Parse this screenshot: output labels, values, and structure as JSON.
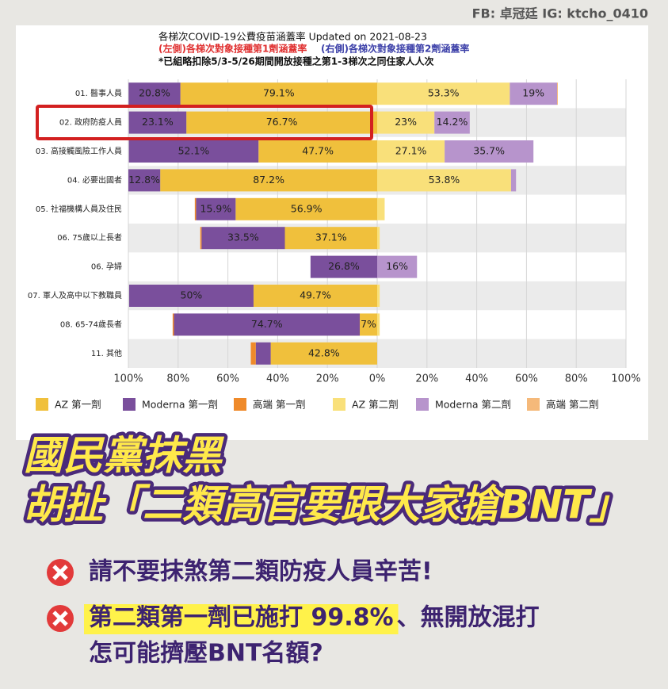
{
  "credit": "FB: 卓冠廷   IG: ktcho_0410",
  "chart_data": {
    "type": "diverging_bar",
    "title": "各梯次COVID-19公費疫苗涵蓋率 Updated on 2021-08-23",
    "subtitle_left": "(左側)各梯次對象接種第1劑涵蓋率",
    "subtitle_right": "(右側)各梯次對象接種第2劑涵蓋率",
    "note": "*已組略扣除5/3-5/26期間開放接種之第1-3梯次之同住家人人次",
    "categories": [
      "01. 醫事人員",
      "02. 政府防疫人員",
      "03. 高接觸風險工作人員",
      "04. 必要出國者",
      "05. 社福機構人員及住民",
      "06. 75歲以上長者",
      "06. 孕婦",
      "07. 軍人及高中以下教職員",
      "08. 65-74歲長者",
      "11. 其他"
    ],
    "xlim": [
      -100,
      100
    ],
    "xticks": [
      {
        "value": -100,
        "label": "100%"
      },
      {
        "value": -80,
        "label": "80%"
      },
      {
        "value": -60,
        "label": "60%"
      },
      {
        "value": -40,
        "label": "40%"
      },
      {
        "value": -20,
        "label": "20%"
      },
      {
        "value": 0,
        "label": "0%"
      },
      {
        "value": 20,
        "label": "20%"
      },
      {
        "value": 40,
        "label": "40%"
      },
      {
        "value": 60,
        "label": "60%"
      },
      {
        "value": 80,
        "label": "80%"
      },
      {
        "value": 100,
        "label": "100%"
      }
    ],
    "grid": true,
    "series": [
      {
        "name": "AZ 第一劑",
        "side": "left",
        "color": "#f0c03c",
        "values": [
          79.1,
          76.7,
          47.7,
          87.2,
          56.9,
          37.1,
          0,
          49.7,
          7,
          42.8
        ],
        "value_labels": [
          "79.1%",
          "76.7%",
          "47.7%",
          "87.2%",
          "56.9%",
          "37.1%",
          null,
          "49.7%",
          "7%",
          "42.8%"
        ]
      },
      {
        "name": "Moderna 第一劑",
        "side": "left",
        "color": "#7a4f9c",
        "values": [
          20.8,
          23.1,
          52.1,
          12.8,
          15.9,
          33.5,
          26.8,
          50,
          74.7,
          6
        ],
        "value_labels": [
          "20.8%",
          "23.1%",
          "52.1%",
          "12.8%",
          "15.9%",
          "33.5%",
          "26.8%",
          "50%",
          "74.7%",
          null
        ]
      },
      {
        "name": "高端 第一劑",
        "side": "left",
        "color": "#ef8a2a",
        "values": [
          0,
          0,
          0,
          0,
          0.5,
          0.5,
          0,
          0,
          0.5,
          2
        ]
      },
      {
        "name": "AZ 第二劑",
        "side": "right",
        "color": "#f9e07a",
        "values": [
          53.3,
          23,
          27.1,
          53.8,
          3,
          1,
          0,
          1,
          1,
          0
        ],
        "value_labels": [
          "53.3%",
          "23%",
          "27.1%",
          "53.8%",
          null,
          null,
          null,
          null,
          null,
          null
        ]
      },
      {
        "name": "Moderna 第二劑",
        "side": "right",
        "color": "#b794cc",
        "values": [
          19,
          14.2,
          35.7,
          2,
          0,
          0,
          16,
          0,
          0,
          0
        ],
        "value_labels": [
          "19%",
          "14.2%",
          "35.7%",
          null,
          null,
          null,
          "16%",
          null,
          null,
          null
        ]
      },
      {
        "name": "高端 第二劑",
        "side": "right",
        "color": "#f5b97a",
        "values": [
          0.3,
          0,
          0,
          0,
          0,
          0,
          0,
          0,
          0,
          0
        ]
      }
    ]
  },
  "headline": [
    "國民黨抹黑",
    "胡扯「二類高官要跟大家搶BNT」"
  ],
  "points": {
    "first": "請不要抹煞第二類防疫人員辛苦!",
    "second_highlight": "第二類第一劑已施打 99.8%",
    "second_rest": "、無開放混打",
    "third": "怎可能擠壓BNT名額?"
  }
}
